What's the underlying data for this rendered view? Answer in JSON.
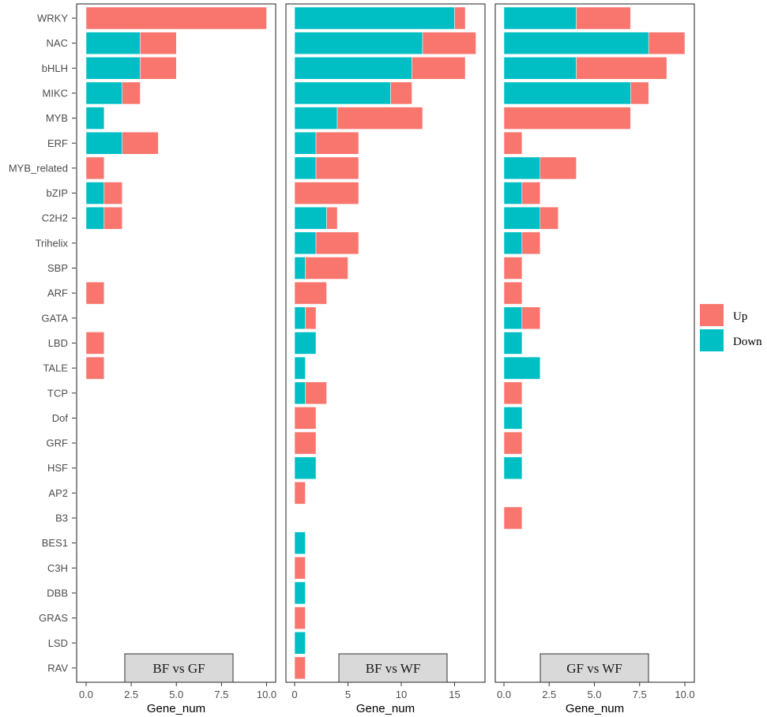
{
  "chart_data": {
    "type": "bar",
    "orientation": "horizontal",
    "stacked": true,
    "categories": [
      "WRKY",
      "NAC",
      "bHLH",
      "MIKC",
      "MYB",
      "ERF",
      "MYB_related",
      "bZIP",
      "C2H2",
      "Trihelix",
      "SBP",
      "ARF",
      "GATA",
      "LBD",
      "TALE",
      "TCP",
      "Dof",
      "GRF",
      "HSF",
      "AP2",
      "B3",
      "BES1",
      "C3H",
      "DBB",
      "GRAS",
      "LSD",
      "RAV"
    ],
    "xlabel": "Gene_num",
    "legend": {
      "position": "right",
      "entries": [
        {
          "name": "Up",
          "color": "#F8766D"
        },
        {
          "name": "Down",
          "color": "#00BFC4"
        }
      ]
    },
    "panels": [
      {
        "strip_label": "BF vs GF",
        "xlim": [
          0,
          10
        ],
        "xticks": [
          "0.0",
          "2.5",
          "5.0",
          "7.5",
          "10.0"
        ],
        "xtick_values": [
          0,
          2.5,
          5,
          7.5,
          10
        ],
        "series": [
          {
            "name": "Down",
            "values": [
              0,
              3,
              3,
              2,
              1,
              2,
              0,
              1,
              1,
              0,
              0,
              0,
              0,
              0,
              0,
              0,
              0,
              0,
              0,
              0,
              0,
              0,
              0,
              0,
              0,
              0,
              0
            ]
          },
          {
            "name": "Up",
            "values": [
              10,
              2,
              2,
              1,
              0,
              2,
              1,
              1,
              1,
              0,
              0,
              1,
              0,
              1,
              1,
              0,
              0,
              0,
              0,
              0,
              0,
              0,
              0,
              0,
              0,
              0,
              0
            ]
          }
        ]
      },
      {
        "strip_label": "BF vs WF",
        "xlim": [
          0,
          17.5
        ],
        "xticks": [
          "0",
          "5",
          "10",
          "15"
        ],
        "xtick_values": [
          0,
          5,
          10,
          15
        ],
        "series": [
          {
            "name": "Down",
            "values": [
              15,
              12,
              11,
              9,
              4,
              2,
              2,
              0,
              3,
              2,
              1,
              0,
              1,
              2,
              1,
              1,
              0,
              0,
              2,
              0,
              0,
              1,
              0,
              1,
              0,
              1,
              0
            ]
          },
          {
            "name": "Up",
            "values": [
              1,
              5,
              5,
              2,
              8,
              4,
              4,
              6,
              1,
              4,
              4,
              3,
              1,
              0,
              0,
              2,
              2,
              2,
              0,
              1,
              0,
              0,
              1,
              0,
              1,
              0,
              1
            ]
          }
        ]
      },
      {
        "strip_label": "GF vs WF",
        "xlim": [
          0,
          10
        ],
        "xticks": [
          "0.0",
          "2.5",
          "5.0",
          "7.5",
          "10.0"
        ],
        "xtick_values": [
          0,
          2.5,
          5,
          7.5,
          10
        ],
        "series": [
          {
            "name": "Down",
            "values": [
              4,
              8,
              4,
              7,
              0,
              0,
              2,
              1,
              2,
              1,
              0,
              0,
              1,
              1,
              2,
              0,
              1,
              0,
              1,
              0,
              0,
              0,
              0,
              0,
              0,
              0,
              0
            ]
          },
          {
            "name": "Up",
            "values": [
              3,
              2,
              5,
              1,
              7,
              1,
              2,
              1,
              1,
              1,
              1,
              1,
              1,
              0,
              0,
              1,
              0,
              1,
              0,
              0,
              1,
              0,
              0,
              0,
              0,
              0,
              0
            ]
          }
        ]
      }
    ]
  }
}
